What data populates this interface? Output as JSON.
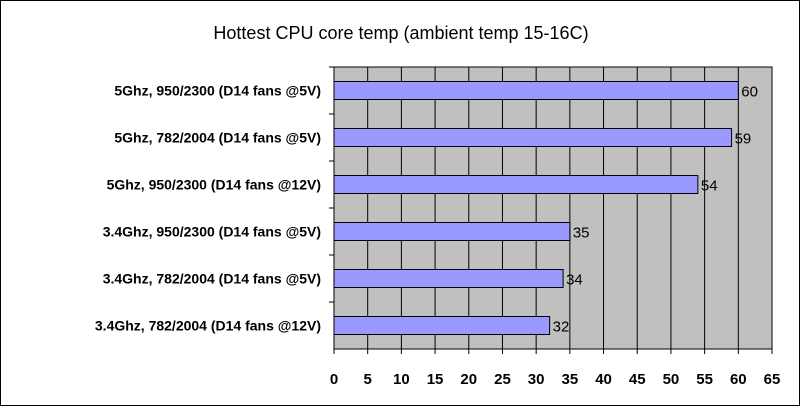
{
  "chart_data": {
    "type": "bar",
    "orientation": "horizontal",
    "title": "Hottest CPU core temp (ambient temp 15-16C)",
    "xlabel": "",
    "ylabel": "",
    "categories": [
      "5Ghz, 950/2300 (D14 fans @5V)",
      "5Ghz, 782/2004 (D14 fans @5V)",
      "5Ghz, 950/2300 (D14 fans @12V)",
      "3.4Ghz, 950/2300 (D14 fans @5V)",
      "3.4Ghz, 782/2004 (D14 fans @5V)",
      "3.4Ghz, 782/2004 (D14 fans @12V)"
    ],
    "values": [
      60,
      59,
      54,
      35,
      34,
      32
    ],
    "xlim": [
      0,
      65
    ],
    "ticks": [
      0,
      5,
      10,
      15,
      20,
      25,
      30,
      35,
      40,
      45,
      50,
      55,
      60,
      65
    ],
    "grid": true,
    "legend": "none",
    "colors": {
      "bar_fill": "#9999ff",
      "bar_stroke": "#000000",
      "plot_background": "#c0c0c0",
      "gridline": "#000000"
    }
  }
}
